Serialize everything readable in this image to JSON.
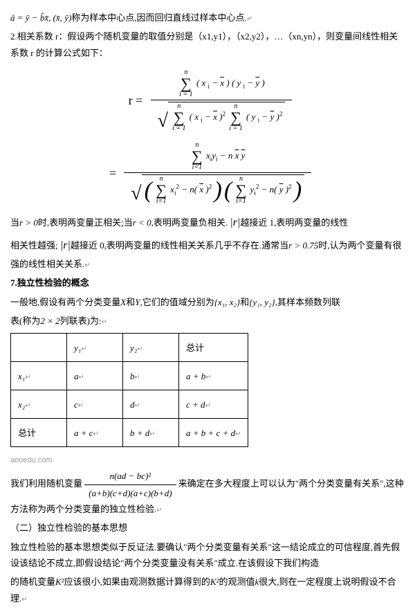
{
  "line1_prefix_formula": "â = ȳ − b̂x̄, (x̄, ȳ)",
  "line1_text": "称为样本中心点,因而回归直线过样本中心点.",
  "line2": "2.相关系数 r：假设两个随机变量的取值分别是（x1,y1），（x2,y2），…（xn,yn），则变量间线性相关系数 r 的计算公式如下：",
  "r_eq": "r  =",
  "sum_top": "n",
  "sum_bot": "i = 1",
  "sum_bot2": "i=1",
  "term1": "( x ",
  "term_i": "i",
  "term2": " − ",
  "xbar": "x",
  "term3": " ) ( y ",
  "ybar": "y",
  "term4": " )",
  "sq": "2",
  "eq2": "=",
  "xy_term": "x",
  "y_term": "y",
  "minus_n": " − n",
  "minus_n_paren": " − n( ",
  "para_r1a": "当",
  "para_r1b": "r > 0",
  "para_r1c": "时,表明两变量正相关;当",
  "para_r1d": "r < 0",
  "para_r1e": ",表明两变量负相关. ",
  "para_r1f": "|r|",
  "para_r1g": "越接近 1,表明两变量的线性",
  "para_r2a": "相关性越强; ",
  "para_r2b": "|r|",
  "para_r2c": "越接近 0,表明两变量的线性相关关系几乎不存在.通常当",
  "para_r2d": "r > 0.75",
  "para_r2e": "时,认为两个变量有很强的线性相关关系.",
  "sec7_title": "7.独立性检验的概念",
  "sec7_p1a": "一般地,假设有两个分类变量",
  "sec7_X": "X",
  "sec7_p1b": "和",
  "sec7_Y": "Y",
  "sec7_p1c": ",它们的值域分别为",
  "sec7_set1": "{x₁, x₂}",
  "sec7_p1d": "和",
  "sec7_set2": "{y₁, y₂}",
  "sec7_p1e": ",其样本频数列联",
  "sec7_p2": "表(称为",
  "sec7_22": "2 × 2",
  "sec7_p2b": "列联表)为:",
  "table": {
    "h_blank": "",
    "h_y1": "y₁",
    "h_y2": "y₂",
    "h_total": "总计",
    "r1_x1": "x₁",
    "r1_a": "a",
    "r1_b": "b",
    "r1_ab": "a + b",
    "r2_x2": "x₂",
    "r2_c": "c",
    "r2_d": "d",
    "r2_cd": "c + d",
    "r3_total": "总计",
    "r3_ac": "a + c",
    "r3_bd": "b + d",
    "r3_all": "a + b + c + d"
  },
  "watermark": "aooedu.com",
  "k2_p1a": "我们利用随机变量",
  "k2_num": "n(ad − bc)²",
  "k2_den": "(a+b)(c+d)(a+c)(b+d)",
  "k2_p1b": "来确定在多大程度上可以认为\"两个分类变量有关系\",这种方法称为两个分类变量的独立性检验.",
  "sec2_title": "（二）独立性检验的基本思想",
  "sec2_p1": "独立性检验的基本思想类似于反证法.要确认\"两个分类变量有关系\"这一结论成立的可信程度,首先假设该结论不成立,即假设结论\"两个分类变量没有关系\"成立.在该假设下我们构造",
  "sec2_p2a": "的随机变量",
  "sec2_K2": "K²",
  "sec2_p2b": "应该很小,如果由观测数据计算得到的",
  "sec2_p2c": "的观测值",
  "sec2_k": "k",
  "sec2_p2d": "很大,则在一定程度上说明假设不合理.",
  "ret": "↵"
}
